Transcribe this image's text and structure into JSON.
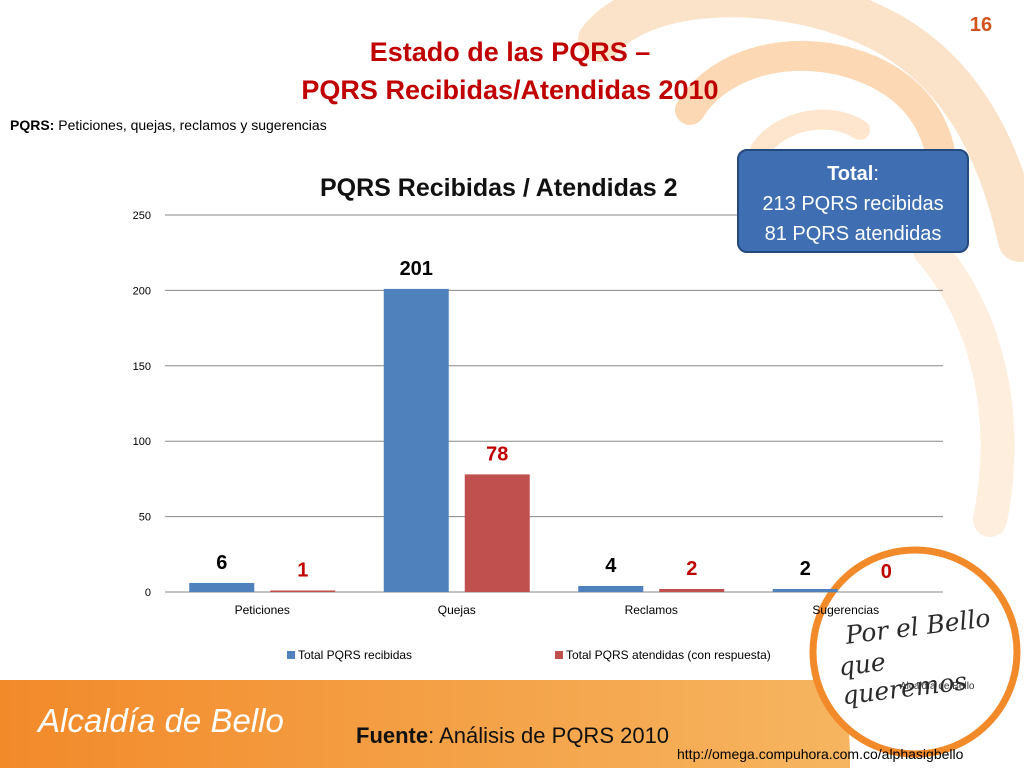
{
  "slide": {
    "number": "16",
    "title_line1": "Estado de las PQRS –",
    "title_line2": "PQRS Recibidas/Atendidas 2010",
    "definition_label": "PQRS:",
    "definition_text": " Peticiones, quejas, reclamos y sugerencias",
    "callout": {
      "label": "Total",
      "colon": ":",
      "line2": "213 PQRS recibidas",
      "line3": "81 PQRS atendidas"
    },
    "source_label": "Fuente",
    "source_text": ": Análisis de PQRS 2010",
    "url": "http://omega.compuhora.com.co/alphasigbello",
    "footer_logo": "Alcaldía de Bello",
    "seal": {
      "line1": "Por el Bello",
      "line2": "que queremos",
      "line3": "Alcaldía de Bello"
    }
  },
  "colors": {
    "title": "#c00000",
    "blue_series": "#4f81bd",
    "red_series": "#c0504d",
    "callout": "#3f6fb2",
    "orange_band": "#f39a3c",
    "slide_number": "#d2531c"
  },
  "chart_data": {
    "type": "bar",
    "title": "PQRS Recibidas  / Atendidas 2",
    "categories": [
      "Peticiones",
      "Quejas",
      "Reclamos",
      "Sugerencias"
    ],
    "series": [
      {
        "name": "Total PQRS recibidas",
        "values": [
          6,
          201,
          4,
          2
        ],
        "color": "#4f81bd",
        "label_color": "#000000"
      },
      {
        "name": "Total PQRS atendidas (con respuesta)",
        "values": [
          1,
          78,
          2,
          0
        ],
        "color": "#c0504d",
        "label_color": "#c00000"
      }
    ],
    "ylim": [
      0,
      250
    ],
    "yticks": [
      0,
      50,
      100,
      150,
      200,
      250
    ],
    "grid": true,
    "legend_position": "bottom"
  }
}
